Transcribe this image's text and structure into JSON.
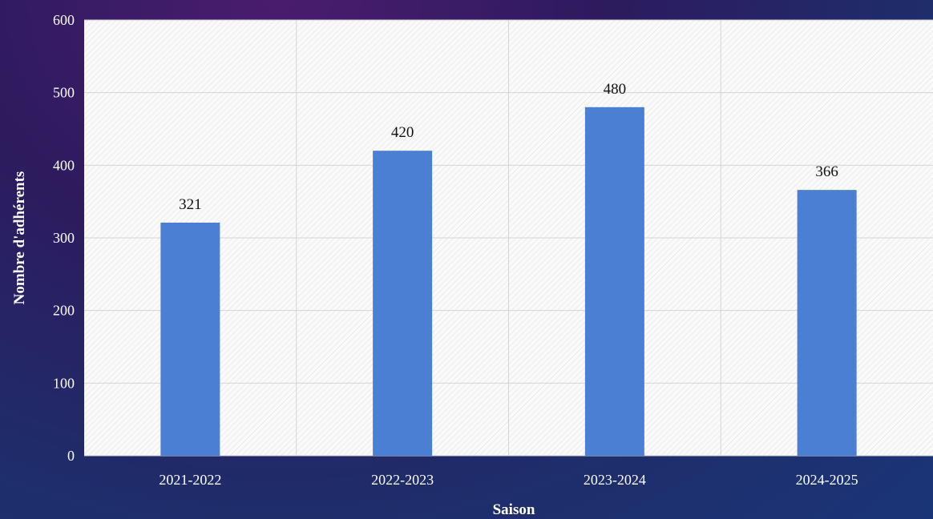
{
  "chart_data": {
    "type": "bar",
    "title": "",
    "xlabel": "Saison",
    "ylabel": "Nombre d'adhérents",
    "categories": [
      "2021-2022",
      "2022-2023",
      "2023-2024",
      "2024-2025"
    ],
    "series": [
      {
        "values": [
          321,
          420,
          480,
          366
        ],
        "color": "#4a7fd4"
      }
    ],
    "ylim": [
      0,
      600
    ],
    "yticks": [
      0,
      100,
      200,
      300,
      400,
      500,
      600
    ],
    "grid": true,
    "data_labels": true,
    "plot_background": "#ffffff"
  }
}
